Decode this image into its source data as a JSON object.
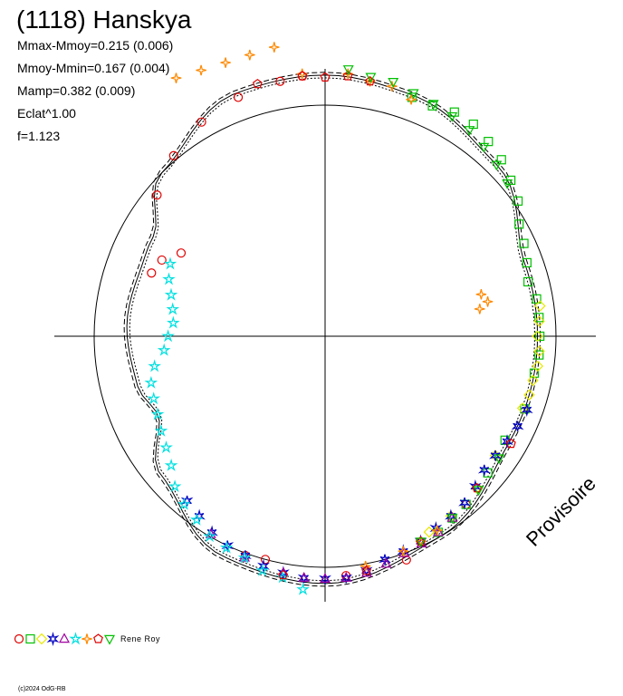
{
  "title": "(1118) Hanskya",
  "stats": [
    "Mmax-Mmoy=0.215 (0.006)",
    "Mmoy-Mmin=0.167 (0.004)",
    "Mamp=0.382 (0.009)",
    "Eclat^1.00",
    "f=1.123"
  ],
  "legend": {
    "author": "Rene Roy",
    "symbols": [
      {
        "shape": "circle",
        "color": "#e00000"
      },
      {
        "shape": "square",
        "color": "#00c000"
      },
      {
        "shape": "diamond",
        "color": "#e8e800"
      },
      {
        "shape": "star6",
        "color": "#0000c0"
      },
      {
        "shape": "triangle",
        "color": "#a000a0"
      },
      {
        "shape": "star",
        "color": "#00e0e0"
      },
      {
        "shape": "star4",
        "color": "#ff8800"
      },
      {
        "shape": "pentagon",
        "color": "#e00000"
      },
      {
        "shape": "tri-down",
        "color": "#00c000"
      }
    ]
  },
  "watermark": "Provisoire",
  "copyright": "(c)2024 OdG-RB",
  "chart_data": {
    "type": "scatter",
    "projection": "polar lightcurve",
    "reference_circle_radius": 1.0,
    "axes": {
      "horizontal": true,
      "vertical": true
    },
    "series": [
      {
        "marker": "circle",
        "color": "#e00000",
        "points": [
          [
            150,
            0.72
          ],
          [
            155,
            0.78
          ],
          [
            160,
            0.8
          ],
          [
            140,
            0.95
          ],
          [
            130,
            1.02
          ],
          [
            120,
            1.07
          ],
          [
            110,
            1.1
          ],
          [
            100,
            1.12
          ],
          [
            95,
            1.13
          ],
          [
            -105,
            1.0
          ],
          [
            -110,
            1.01
          ],
          [
            -85,
            1.04
          ],
          [
            -70,
            1.03
          ],
          [
            -50,
            0.95
          ]
        ]
      },
      {
        "marker": "square",
        "color": "#00c000",
        "points": [
          [
            70,
            1.1
          ],
          [
            65,
            1.1
          ],
          [
            60,
            1.12
          ],
          [
            55,
            1.12
          ],
          [
            50,
            1.1
          ],
          [
            45,
            1.08
          ],
          [
            40,
            1.05
          ],
          [
            35,
            1.02
          ],
          [
            30,
            0.97
          ],
          [
            25,
            0.95
          ],
          [
            20,
            0.93
          ],
          [
            15,
            0.91
          ],
          [
            10,
            0.93
          ],
          [
            5,
            0.93
          ],
          [
            0,
            0.93
          ],
          [
            -5,
            0.93
          ],
          [
            -10,
            0.92
          ],
          [
            -20,
            0.92
          ],
          [
            -30,
            0.9
          ],
          [
            -40,
            0.92
          ],
          [
            -50,
            0.95
          ],
          [
            -55,
            0.96
          ],
          [
            -60,
            0.98
          ]
        ]
      },
      {
        "marker": "diamond",
        "color": "#e8e800",
        "points": [
          [
            8,
            0.94
          ],
          [
            4,
            0.93
          ],
          [
            0,
            0.92
          ],
          [
            -4,
            0.93
          ],
          [
            -8,
            0.93
          ],
          [
            -12,
            0.92
          ],
          [
            -16,
            0.92
          ],
          [
            -20,
            0.91
          ],
          [
            -35,
            0.9
          ],
          [
            -45,
            0.93
          ],
          [
            -55,
            0.95
          ],
          [
            -62,
            0.96
          ]
        ]
      },
      {
        "marker": "star6",
        "color": "#0000c0",
        "points": [
          [
            -20,
            0.93
          ],
          [
            -25,
            0.92
          ],
          [
            -30,
            0.91
          ],
          [
            -35,
            0.9
          ],
          [
            -40,
            0.9
          ],
          [
            -45,
            0.92
          ],
          [
            -50,
            0.94
          ],
          [
            -55,
            0.95
          ],
          [
            -60,
            0.96
          ],
          [
            -65,
            0.98
          ],
          [
            -70,
            0.99
          ],
          [
            -75,
            1.0
          ],
          [
            -80,
            1.03
          ],
          [
            -85,
            1.05
          ],
          [
            -90,
            1.05
          ],
          [
            -95,
            1.05
          ],
          [
            -100,
            1.04
          ],
          [
            -105,
            1.03
          ],
          [
            -110,
            1.01
          ],
          [
            -115,
            1.0
          ],
          [
            -120,
            0.98
          ],
          [
            -125,
            0.95
          ],
          [
            -130,
            0.93
          ]
        ]
      },
      {
        "marker": "triangle",
        "color": "#a000a0",
        "points": [
          [
            -55,
            0.96
          ],
          [
            -60,
            0.98
          ],
          [
            -65,
            0.99
          ],
          [
            -70,
            1.0
          ],
          [
            -75,
            1.02
          ],
          [
            -80,
            1.04
          ],
          [
            -85,
            1.05
          ],
          [
            -90,
            1.05
          ],
          [
            -95,
            1.05
          ],
          [
            -100,
            1.04
          ],
          [
            -110,
            1.02
          ],
          [
            -120,
            0.99
          ]
        ]
      },
      {
        "marker": "star",
        "color": "#00e0e0",
        "points": [
          [
            -95,
            1.1
          ],
          [
            -100,
            1.06
          ],
          [
            -105,
            1.05
          ],
          [
            -110,
            1.02
          ],
          [
            -115,
            1.01
          ],
          [
            -120,
            1.0
          ],
          [
            -125,
            0.97
          ],
          [
            -130,
            0.95
          ],
          [
            -135,
            0.92
          ],
          [
            -140,
            0.87
          ],
          [
            -145,
            0.84
          ],
          [
            -150,
            0.82
          ],
          [
            -155,
            0.8
          ],
          [
            -160,
            0.79
          ],
          [
            -165,
            0.78
          ],
          [
            -170,
            0.75
          ],
          [
            -175,
            0.7
          ],
          [
            -180,
            0.68
          ],
          [
            -185,
            0.66
          ],
          [
            -190,
            0.67
          ],
          [
            -195,
            0.69
          ],
          [
            -200,
            0.72
          ],
          [
            -205,
            0.74
          ]
        ]
      },
      {
        "marker": "star4",
        "color": "#ff8800",
        "points": [
          [
            120,
            1.29
          ],
          [
            115,
            1.27
          ],
          [
            110,
            1.26
          ],
          [
            105,
            1.26
          ],
          [
            100,
            1.27
          ],
          [
            95,
            1.14
          ],
          [
            85,
            1.14
          ],
          [
            80,
            1.12
          ],
          [
            75,
            1.12
          ],
          [
            70,
            1.09
          ],
          [
            15,
            0.7
          ],
          [
            12,
            0.72
          ],
          [
            10,
            0.68
          ],
          [
            -60,
            0.97
          ],
          [
            -65,
            0.98
          ],
          [
            -70,
            0.99
          ],
          [
            -80,
            1.01
          ]
        ]
      },
      {
        "marker": "pentagon",
        "color": "#e00000",
        "points": [
          [
            105,
            1.13
          ],
          [
            95,
            1.13
          ],
          [
            90,
            1.12
          ],
          [
            85,
            1.13
          ],
          [
            80,
            1.12
          ],
          [
            -30,
            0.93
          ],
          [
            -45,
            0.93
          ],
          [
            -65,
            0.98
          ],
          [
            -80,
            1.03
          ],
          [
            -100,
            1.05
          ]
        ]
      },
      {
        "marker": "tri-down",
        "color": "#00c000",
        "points": [
          [
            85,
            1.16
          ],
          [
            80,
            1.14
          ],
          [
            75,
            1.14
          ],
          [
            70,
            1.12
          ],
          [
            65,
            1.11
          ],
          [
            60,
            1.1
          ],
          [
            55,
            1.09
          ],
          [
            50,
            1.07
          ],
          [
            45,
            1.05
          ],
          [
            40,
            1.03
          ],
          [
            -35,
            0.92
          ],
          [
            -45,
            0.94
          ],
          [
            -55,
            0.96
          ],
          [
            -65,
            0.98
          ]
        ]
      }
    ],
    "fit_curves": 3
  }
}
